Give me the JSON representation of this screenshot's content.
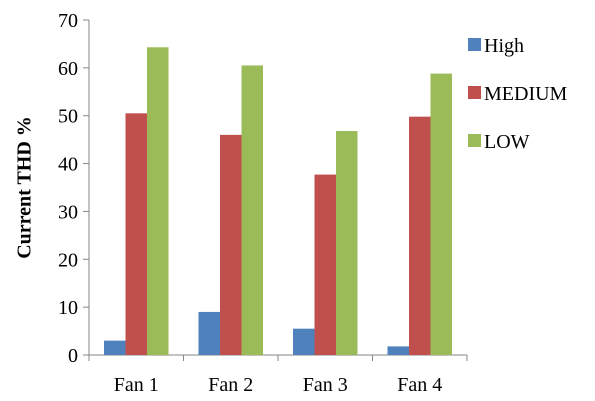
{
  "chart_data": {
    "type": "bar",
    "title": "",
    "xlabel": "",
    "ylabel": "Current THD %",
    "ylim": [
      0,
      70
    ],
    "yticks": [
      0,
      10,
      20,
      30,
      40,
      50,
      60,
      70
    ],
    "categories": [
      "Fan 1",
      "Fan 2",
      "Fan 3",
      "Fan 4"
    ],
    "series": [
      {
        "name": "High",
        "color": "#4f81bd",
        "values": [
          3,
          9,
          5.5,
          1.8
        ]
      },
      {
        "name": "MEDIUM",
        "color": "#c0504d",
        "values": [
          50.5,
          46,
          37.7,
          49.8
        ]
      },
      {
        "name": "LOW",
        "color": "#9bbb59",
        "values": [
          64.3,
          60.5,
          46.8,
          58.8
        ]
      }
    ],
    "grid": false,
    "legend": "right"
  }
}
